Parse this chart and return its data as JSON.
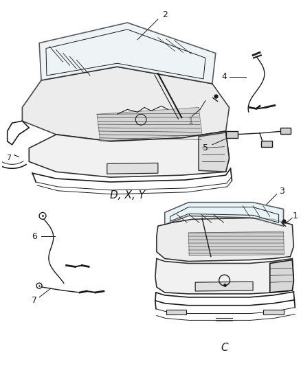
{
  "bg_color": "#ffffff",
  "line_color": "#1a1a1a",
  "label_color": "#1a1a1a",
  "variant_top": "D, X, Y",
  "variant_bottom": "C",
  "figsize": [
    4.38,
    5.33
  ],
  "dpi": 100
}
